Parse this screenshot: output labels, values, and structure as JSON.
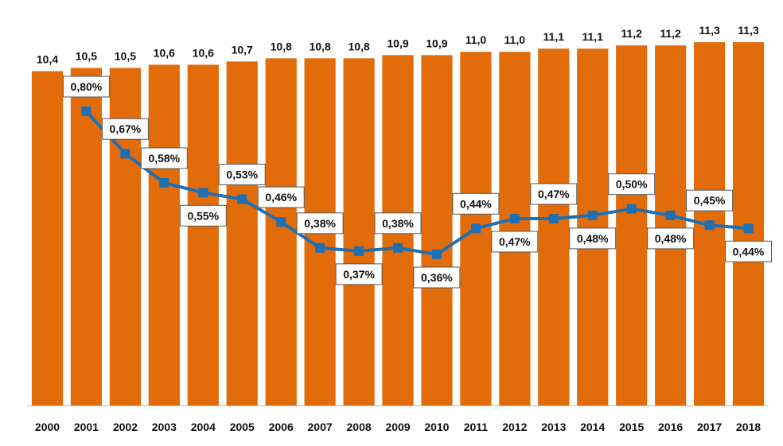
{
  "chart_data": {
    "type": "bar",
    "title": "",
    "xlabel": "",
    "ylabel": "",
    "categories": [
      "2000",
      "2001",
      "2002",
      "2003",
      "2004",
      "2005",
      "2006",
      "2007",
      "2008",
      "2009",
      "2010",
      "2011",
      "2012",
      "2013",
      "2014",
      "2015",
      "2016",
      "2017",
      "2018"
    ],
    "series": [
      {
        "type": "bar",
        "values": [
          10.4,
          10.5,
          10.5,
          10.6,
          10.6,
          10.7,
          10.8,
          10.8,
          10.8,
          10.9,
          10.9,
          11.0,
          11.0,
          11.1,
          11.1,
          11.2,
          11.2,
          11.3,
          11.3
        ],
        "labels": [
          "10,4",
          "10,5",
          "10,5",
          "10,6",
          "10,6",
          "10,7",
          "10,8",
          "10,8",
          "10,8",
          "10,9",
          "10,9",
          "11,0",
          "11,0",
          "11,1",
          "11,1",
          "11,2",
          "11,2",
          "11,3",
          "11,3"
        ],
        "color": "#E36C0A"
      },
      {
        "type": "line",
        "values": [
          null,
          0.8,
          0.67,
          0.58,
          0.55,
          0.53,
          0.46,
          0.38,
          0.37,
          0.38,
          0.36,
          0.44,
          0.47,
          0.47,
          0.48,
          0.5,
          0.48,
          0.45,
          0.44
        ],
        "labels": [
          "",
          "0,80%",
          "0,67%",
          "0,58%",
          "0,55%",
          "0,53%",
          "0,46%",
          "0,38%",
          "0,37%",
          "0,38%",
          "0,36%",
          "0,44%",
          "0,47%",
          "0,47%",
          "0,48%",
          "0,50%",
          "0,48%",
          "0,45%",
          "0,44%"
        ],
        "label_position": [
          "",
          "above",
          "above",
          "above",
          "below",
          "above",
          "above",
          "above",
          "below",
          "above",
          "below",
          "above",
          "below",
          "above",
          "below",
          "above",
          "below",
          "above",
          "below"
        ],
        "color": "#1F6FB2"
      }
    ],
    "bar_ylim": [
      0,
      11.5
    ],
    "line_ylim": [
      0,
      1.3
    ],
    "grid": false,
    "legend": "none"
  }
}
